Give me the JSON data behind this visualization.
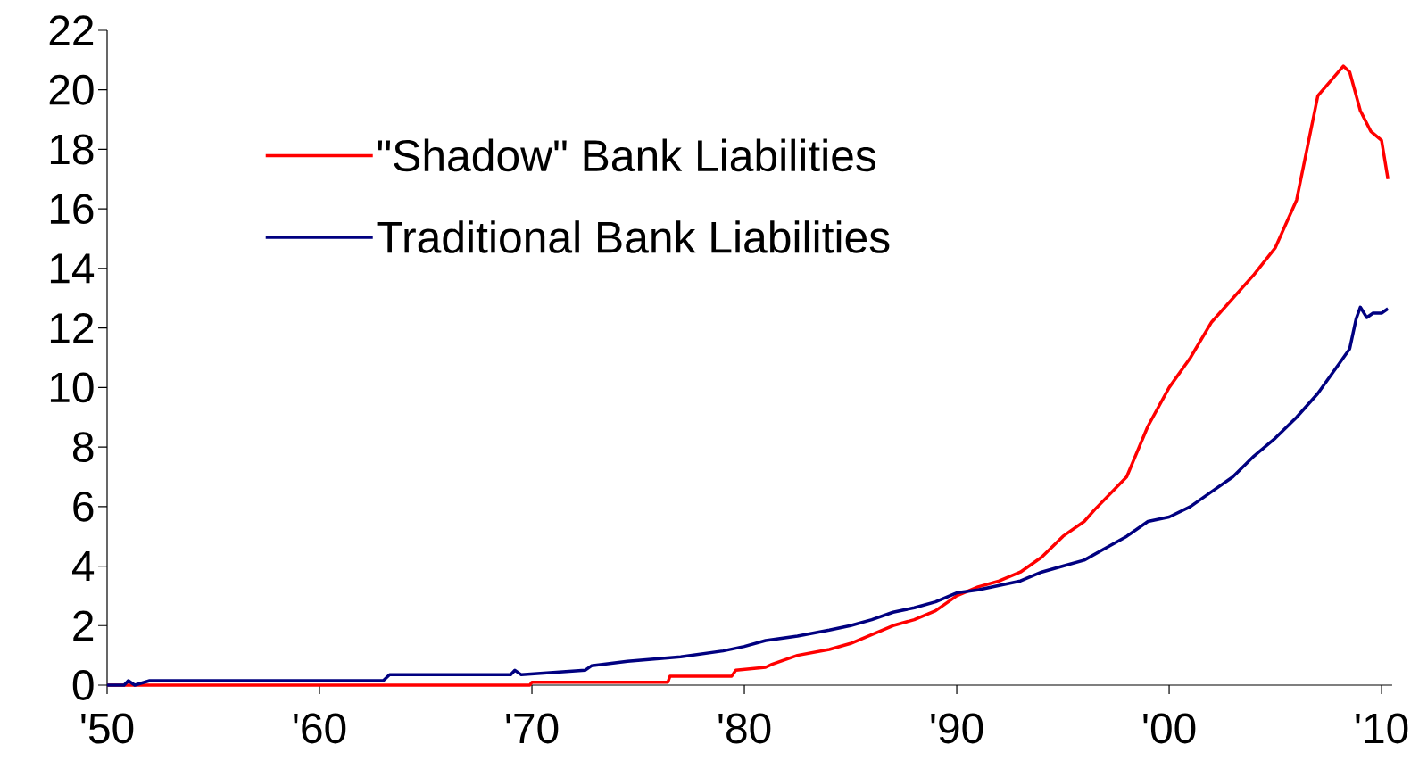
{
  "chart_data": {
    "type": "line",
    "legend": "top left",
    "grid": false,
    "marker": "none",
    "line_style": "solid",
    "xlim": [
      1950,
      2010.5
    ],
    "ylim": [
      0,
      22
    ],
    "xticks": [
      {
        "value": 1950,
        "label": "'50"
      },
      {
        "value": 1960,
        "label": "'60"
      },
      {
        "value": 1970,
        "label": "'70"
      },
      {
        "value": 1980,
        "label": "'80"
      },
      {
        "value": 1990,
        "label": "'90"
      },
      {
        "value": 2000,
        "label": "'00"
      },
      {
        "value": 2010,
        "label": "'10"
      }
    ],
    "yticks": [
      0,
      2,
      4,
      6,
      8,
      10,
      12,
      14,
      16,
      18,
      20,
      22
    ],
    "series": [
      {
        "name": "\"Shadow\" Bank Liabilities",
        "color": "#ff0000",
        "x": [
          1950,
          1969.9,
          1970,
          1976.4,
          1976.5,
          1979.4,
          1979.6,
          1981,
          1981.3,
          1982.5,
          1984,
          1985,
          1986,
          1987,
          1988,
          1989,
          1990,
          1991,
          1992,
          1993,
          1994,
          1995,
          1996,
          1996.5,
          1998,
          1999,
          2000,
          2001,
          2002,
          2003,
          2004,
          2005,
          2006,
          2007,
          2008.2,
          2008.5,
          2009,
          2009.5,
          2010,
          2010.3
        ],
        "values": [
          0,
          0,
          0.1,
          0.1,
          0.3,
          0.3,
          0.5,
          0.6,
          0.7,
          1.0,
          1.2,
          1.4,
          1.7,
          2.0,
          2.2,
          2.5,
          3.0,
          3.3,
          3.5,
          3.8,
          4.3,
          5.0,
          5.5,
          5.9,
          7.0,
          8.7,
          10.0,
          11.0,
          12.2,
          13.0,
          13.8,
          14.7,
          16.3,
          19.8,
          20.8,
          20.6,
          19.3,
          18.6,
          18.3,
          17.0
        ]
      },
      {
        "name": "Traditional Bank Liabilities",
        "color": "#000080",
        "x": [
          1950,
          1950.8,
          1951,
          1951.3,
          1952,
          1963,
          1963.3,
          1969,
          1969.2,
          1969.5,
          1972.5,
          1972.8,
          1974.5,
          1977,
          1979,
          1980,
          1981,
          1982.5,
          1984,
          1985,
          1986,
          1987,
          1988,
          1989,
          1990,
          1991,
          1992,
          1993,
          1994,
          1995,
          1996,
          1997,
          1998,
          1999,
          2000,
          2001,
          2002,
          2003,
          2004,
          2005,
          2006,
          2007,
          2008,
          2008.5,
          2008.8,
          2009,
          2009.3,
          2009.6,
          2010,
          2010.3
        ],
        "values": [
          0,
          0,
          0.15,
          0,
          0.15,
          0.15,
          0.35,
          0.35,
          0.5,
          0.35,
          0.5,
          0.65,
          0.8,
          0.95,
          1.15,
          1.3,
          1.5,
          1.65,
          1.85,
          2.0,
          2.2,
          2.45,
          2.6,
          2.8,
          3.1,
          3.2,
          3.35,
          3.5,
          3.8,
          4.0,
          4.2,
          4.6,
          5.0,
          5.5,
          5.65,
          6.0,
          6.5,
          7.0,
          7.7,
          8.3,
          9.0,
          9.8,
          10.8,
          11.3,
          12.3,
          12.7,
          12.35,
          12.5,
          12.5,
          12.65
        ]
      }
    ]
  }
}
